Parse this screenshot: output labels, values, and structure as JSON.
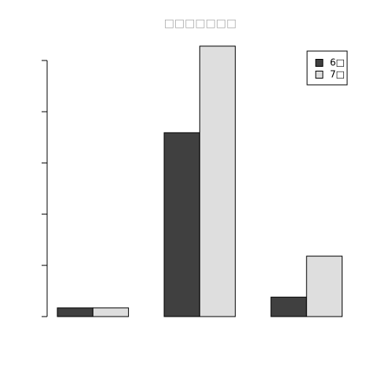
{
  "chart_data": {
    "type": "bar",
    "title": "□□□□□□□",
    "categories": [
      null,
      null,
      null
    ],
    "series": [
      {
        "name": "6□",
        "color": "#404040",
        "values": [
          0.17,
          3.59,
          0.38
        ]
      },
      {
        "name": "7□",
        "color": "#dedede",
        "values": [
          0.17,
          5.28,
          1.18
        ]
      }
    ],
    "ylim": [
      0,
      5.5
    ],
    "yticks": [
      0,
      1,
      2,
      3,
      4,
      5
    ],
    "legend": "top-right"
  }
}
